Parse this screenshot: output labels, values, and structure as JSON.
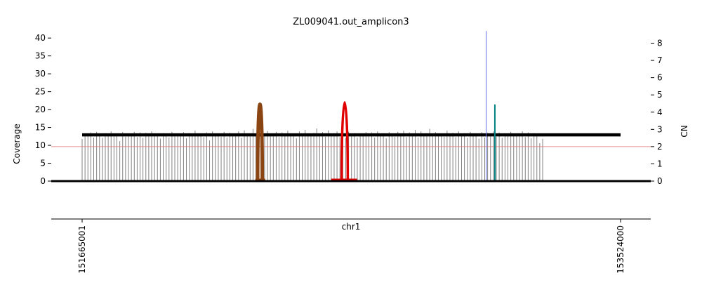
{
  "chart_data": {
    "type": "bar",
    "title": "ZL009041.out_amplicon3",
    "xlabel": "chr1",
    "ylabel_left": "Coverage",
    "ylabel_right": "CN",
    "xlim": [
      151665001,
      153524000
    ],
    "ylim_left": [
      0,
      42
    ],
    "ylim_right": [
      0,
      8.7
    ],
    "x_ticks": [
      151665001,
      153524000
    ],
    "y_ticks_left": [
      0,
      5,
      10,
      15,
      20,
      25,
      30,
      35,
      40
    ],
    "y_ticks_right": [
      0,
      1,
      2,
      3,
      4,
      5,
      6,
      7,
      8
    ],
    "coverage_bars": {
      "color": "#808080",
      "start": 151665001,
      "step": 10000,
      "heights": [
        11.8,
        12.6,
        13.1,
        13.6,
        12.2,
        13.8,
        12.9,
        12.1,
        13.4,
        12.8,
        13.9,
        12.5,
        13.2,
        11.2,
        13.7,
        12.4,
        13.3,
        12.9,
        13.8,
        12.3,
        13.6,
        12.1,
        13.5,
        12.7,
        13.9,
        12.6,
        13.2,
        11.9,
        13.4,
        13.0,
        12.2,
        13.8,
        12.5,
        13.3,
        12.8,
        13.7,
        12.0,
        13.4,
        12.9,
        14.1,
        12.6,
        13.2,
        12.3,
        13.6,
        11.4,
        13.9,
        12.7,
        13.1,
        12.4,
        13.8,
        12.2,
        13.5,
        13.0,
        12.6,
        13.9,
        12.1,
        14.2,
        13.3,
        12.8,
        14.6,
        13.1,
        12.4,
        13.7,
        12.9,
        14.0,
        13.2,
        12.5,
        13.8,
        12.3,
        13.6,
        12.9,
        14.1,
        12.7,
        13.3,
        12.0,
        13.9,
        12.6,
        14.3,
        13.1,
        12.8,
        13.5,
        14.7,
        12.9,
        13.7,
        12.4,
        14.2,
        13.2,
        12.6,
        13.9,
        12.3,
        13.6,
        12.1,
        13.8,
        12.7,
        13.4,
        12.2,
        13.3,
        12.9,
        13.7,
        12.5,
        13.6,
        12.2,
        13.9,
        12.6,
        13.4,
        12.0,
        13.7,
        13.1,
        12.4,
        13.8,
        12.9,
        14.1,
        12.3,
        13.6,
        12.8,
        14.3,
        12.2,
        13.9,
        12.7,
        13.4,
        14.6,
        12.5,
        13.7,
        12.9,
        13.2,
        12.4,
        14.1,
        12.8,
        13.5,
        12.3,
        13.9,
        12.7,
        13.4,
        12.1,
        13.8,
        12.6,
        13.3,
        11.9,
        13.7,
        12.2,
        13.5,
        12.8,
        13.9,
        12.4,
        13.6,
        12.1,
        13.4,
        12.9,
        13.8,
        12.5,
        13.2,
        12.7,
        13.9,
        12.3,
        13.6,
        12.0,
        13.4,
        12.8,
        10.6,
        11.8
      ]
    },
    "copy_number_segments": [
      {
        "start": 151665001,
        "end": 153524000,
        "cn": 2.68,
        "color": "#000000"
      }
    ],
    "cn_baseline": {
      "value": 2.0,
      "color": "#e07070"
    },
    "vertical_markers": [
      {
        "x": 153060000,
        "cn_top": 8.7,
        "color": "#6a6ae8"
      },
      {
        "x": 153090000,
        "cn_top": 4.45,
        "color": "#008080"
      }
    ],
    "breakpoint_arcs": [
      {
        "from": 152271000,
        "to": 152287000,
        "height_cov": 21.5,
        "color": "#8b4513"
      },
      {
        "from": 152561000,
        "to": 152582000,
        "height_cov": 22.0,
        "color": "#e00000"
      }
    ],
    "arc_base_lines": [
      {
        "from": 152263000,
        "to": 152297000,
        "color": "#8b4513"
      },
      {
        "from": 152525000,
        "to": 152614000,
        "color": "#e00000"
      }
    ],
    "grid": false
  }
}
